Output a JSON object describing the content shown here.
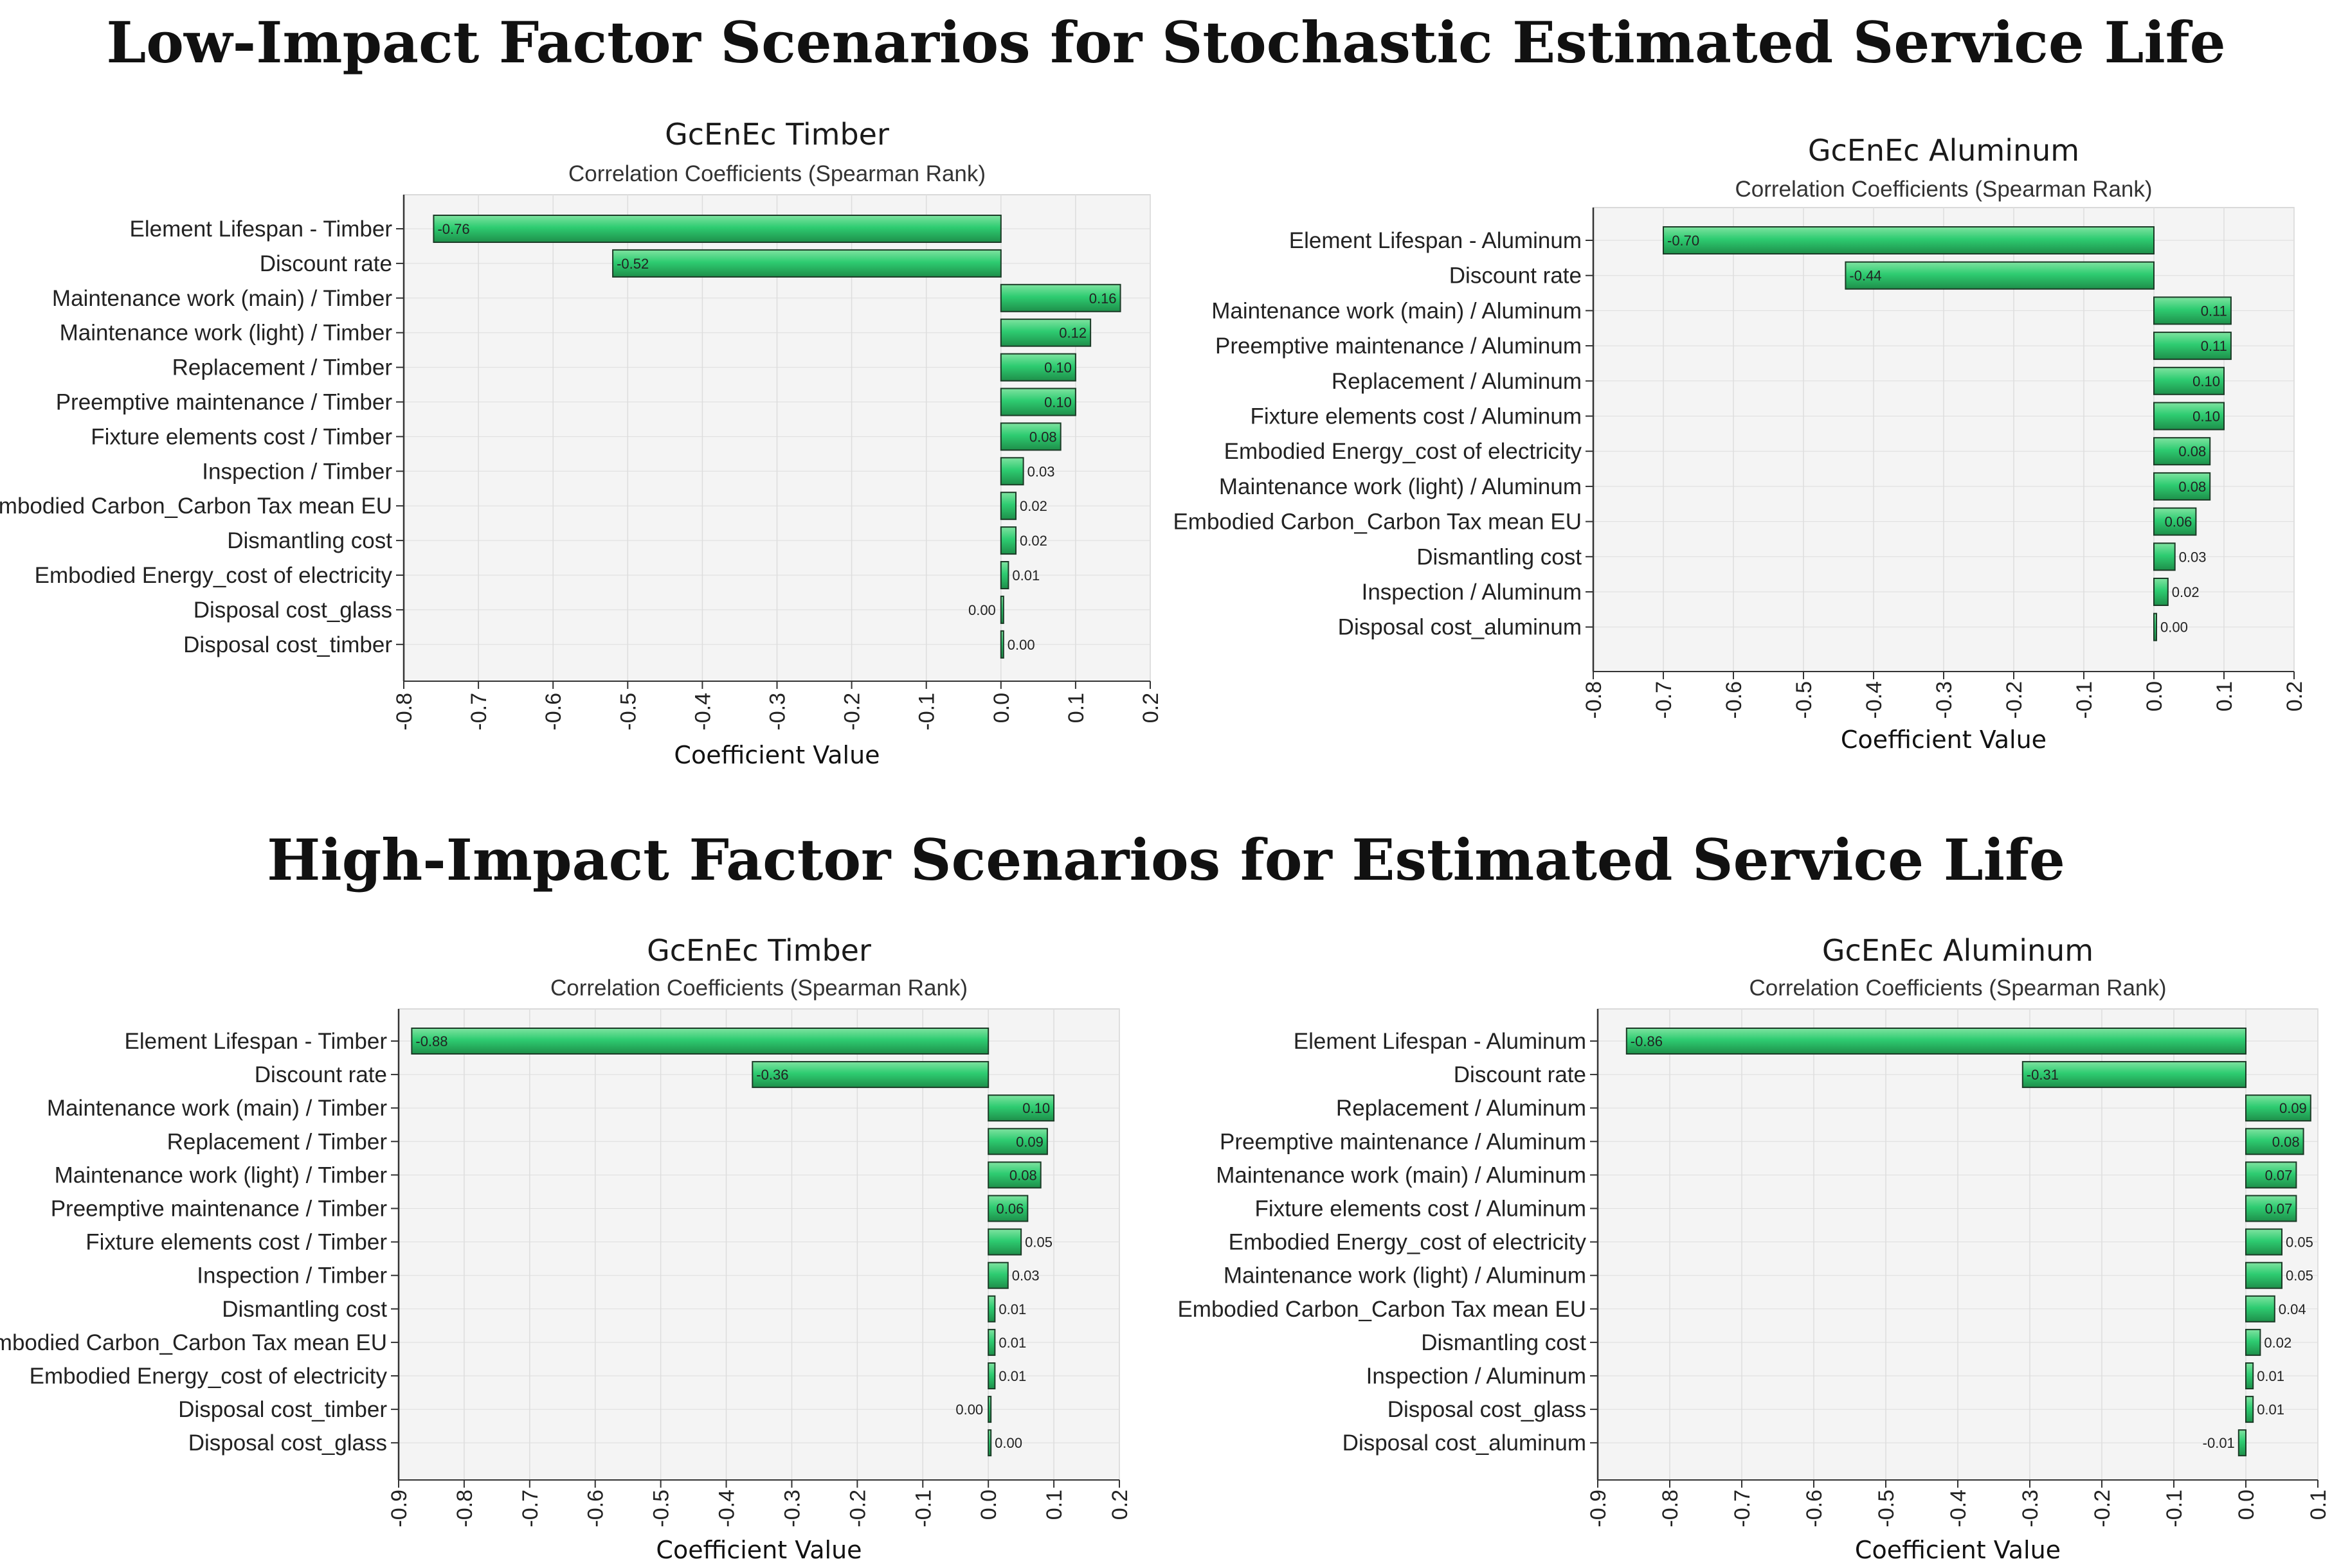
{
  "colors": {
    "bar_fill": "#2ecc71",
    "bar_stroke": "#1b3a26",
    "plot_bg": "#f4f4f4",
    "grid": "#dddddd"
  },
  "sections": {
    "low_title": "Low-Impact Factor Scenarios for Stochastic Estimated Service Life",
    "high_title": "High-Impact Factor Scenarios for Estimated Service Life"
  },
  "chart_data": [
    {
      "type": "bar",
      "orientation": "horizontal",
      "title": "GcEnEc Timber",
      "subtitle": "Correlation Coefficients (Spearman Rank)",
      "xlabel": "Coefficient Value",
      "xlim": [
        -0.8,
        0.2
      ],
      "xticks": [
        "-0.8",
        "-0.7",
        "-0.6",
        "-0.5",
        "-0.4",
        "-0.3",
        "-0.2",
        "-0.1",
        "0.0",
        "0.1",
        "0.2"
      ],
      "categories": [
        "Element Lifespan - Timber",
        "Discount rate",
        "Maintenance work (main) / Timber",
        "Maintenance work (light) / Timber",
        "Replacement / Timber",
        "Preemptive maintenance / Timber",
        "Fixture elements cost / Timber",
        "Inspection / Timber",
        "Embodied Carbon_Carbon Tax mean EU",
        "Dismantling cost",
        "Embodied Energy_cost of  electricity",
        "Disposal cost_glass",
        "Disposal cost_timber"
      ],
      "values": [
        -0.76,
        -0.52,
        0.16,
        0.12,
        0.1,
        0.1,
        0.08,
        0.03,
        0.02,
        0.02,
        0.01,
        0.0,
        0.0
      ],
      "labels": [
        "-0.76",
        "-0.52",
        "0.16",
        "0.12",
        "0.10",
        "0.10",
        "0.08",
        "0.03",
        "0.02",
        "0.02",
        "0.01",
        "0.00",
        "0.00"
      ]
    },
    {
      "type": "bar",
      "orientation": "horizontal",
      "title": "GcEnEc  Aluminum",
      "subtitle": "Correlation Coefficients (Spearman Rank)",
      "xlabel": "Coefficient Value",
      "xlim": [
        -0.8,
        0.2
      ],
      "xticks": [
        "-0.8",
        "-0.7",
        "-0.6",
        "-0.5",
        "-0.4",
        "-0.3",
        "-0.2",
        "-0.1",
        "0.0",
        "0.1",
        "0.2"
      ],
      "categories": [
        "Element Lifespan - Aluminum",
        "Discount rate",
        "Maintenance work (main) / Aluminum",
        "Preemptive maintenance / Aluminum",
        "Replacement / Aluminum",
        "Fixture elements cost / Aluminum",
        "Embodied Energy_cost of  electricity",
        "Maintenance work (light) / Aluminum",
        "Embodied Carbon_Carbon Tax mean EU",
        "Dismantling cost",
        "Inspection / Aluminum",
        "Disposal cost_aluminum"
      ],
      "values": [
        -0.7,
        -0.44,
        0.11,
        0.11,
        0.1,
        0.1,
        0.08,
        0.08,
        0.06,
        0.03,
        0.02,
        0.0
      ],
      "labels": [
        "-0.70",
        "-0.44",
        "0.11",
        "0.11",
        "0.10",
        "0.10",
        "0.08",
        "0.08",
        "0.06",
        "0.03",
        "0.02",
        "0.00"
      ]
    },
    {
      "type": "bar",
      "orientation": "horizontal",
      "title": "GcEnEc Timber",
      "subtitle": "Correlation Coefficients (Spearman Rank)",
      "xlabel": "Coefficient Value",
      "xlim": [
        -0.9,
        0.2
      ],
      "xticks": [
        "-0.9",
        "-0.8",
        "-0.7",
        "-0.6",
        "-0.5",
        "-0.4",
        "-0.3",
        "-0.2",
        "-0.1",
        "0.0",
        "0.1",
        "0.2"
      ],
      "categories": [
        "Element Lifespan - Timber",
        "Discount rate",
        "Maintenance work (main) / Timber",
        "Replacement / Timber",
        "Maintenance work (light) / Timber",
        "Preemptive maintenance / Timber",
        "Fixture elements cost / Timber",
        "Inspection / Timber",
        "Dismantling cost",
        "Embodied Carbon_Carbon Tax mean EU",
        "Embodied Energy_cost of  electricity",
        "Disposal cost_timber",
        "Disposal cost_glass"
      ],
      "values": [
        -0.88,
        -0.36,
        0.1,
        0.09,
        0.08,
        0.06,
        0.05,
        0.03,
        0.01,
        0.01,
        0.01,
        0.0,
        0.0
      ],
      "labels": [
        "-0.88",
        "-0.36",
        "0.10",
        "0.09",
        "0.08",
        "0.06",
        "0.05",
        "0.03",
        "0.01",
        "0.01",
        "0.01",
        "0.00",
        "0.00"
      ]
    },
    {
      "type": "bar",
      "orientation": "horizontal",
      "title": "GcEnEc Aluminum",
      "subtitle": "Correlation Coefficients (Spearman Rank)",
      "xlabel": "Coefficient Value",
      "xlim": [
        -0.9,
        0.1
      ],
      "xticks": [
        "-0.9",
        "-0.8",
        "-0.7",
        "-0.6",
        "-0.5",
        "-0.4",
        "-0.3",
        "-0.2",
        "-0.1",
        "0.0",
        "0.1"
      ],
      "categories": [
        "Element Lifespan - Aluminum",
        "Discount rate",
        "Replacement / Aluminum",
        "Preemptive maintenance / Aluminum",
        "Maintenance work (main) / Aluminum",
        "Fixture elements cost / Aluminum",
        "Embodied Energy_cost of  electricity",
        "Maintenance work (light) / Aluminum",
        "Embodied Carbon_Carbon Tax mean EU",
        "Dismantling cost",
        "Inspection / Aluminum",
        "Disposal cost_glass",
        "Disposal cost_aluminum"
      ],
      "values": [
        -0.86,
        -0.31,
        0.09,
        0.08,
        0.07,
        0.07,
        0.05,
        0.05,
        0.04,
        0.02,
        0.01,
        0.01,
        -0.01
      ],
      "labels": [
        "-0.86",
        "-0.31",
        "0.09",
        "0.08",
        "0.07",
        "0.07",
        "0.05",
        "0.05",
        "0.04",
        "0.02",
        "0.01",
        "0.01",
        "-0.01"
      ]
    }
  ]
}
